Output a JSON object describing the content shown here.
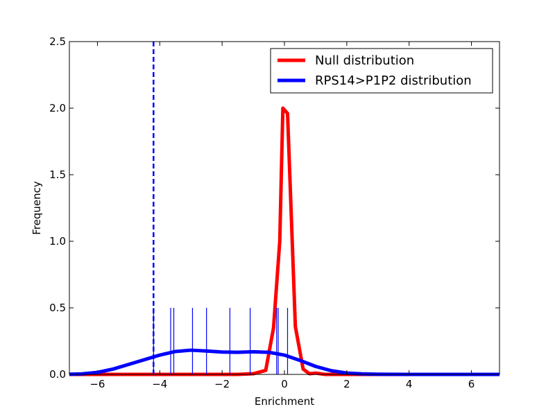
{
  "chart_data": {
    "type": "line",
    "xlabel": "Enrichment",
    "ylabel": "Frequency",
    "xlim": [
      -6.9,
      6.9
    ],
    "ylim": [
      0,
      2.5
    ],
    "x_ticks": [
      -6,
      -4,
      -2,
      0,
      2,
      4,
      6
    ],
    "x_tick_labels": [
      "−6",
      "−4",
      "−2",
      "0",
      "2",
      "4",
      "6"
    ],
    "y_ticks": [
      0,
      0.5,
      1,
      1.5,
      2,
      2.5
    ],
    "y_tick_labels": [
      "0.0",
      "0.5",
      "1.0",
      "1.5",
      "2.0",
      "2.5"
    ],
    "legend_position": "top-right",
    "series": [
      {
        "name": "Null distribution",
        "color": "#ff0000",
        "x": [
          -6.9,
          -6.0,
          -5.0,
          -4.0,
          -3.0,
          -2.0,
          -1.5,
          -1.0,
          -0.6,
          -0.35,
          -0.15,
          -0.05,
          0.1,
          0.35,
          0.6,
          0.8,
          1.0,
          1.3,
          2.0,
          4.0,
          6.9
        ],
        "y": [
          0.0,
          0.0,
          0.0,
          0.0,
          0.0,
          0.0,
          0.0,
          0.005,
          0.03,
          0.35,
          1.0,
          2.0,
          1.96,
          0.36,
          0.04,
          0.005,
          0.01,
          0.0,
          0.0,
          0.0,
          0.0
        ]
      },
      {
        "name": "RPS14>P1P2 distribution",
        "color": "#0000ff",
        "x": [
          -6.9,
          -6.5,
          -6.0,
          -5.5,
          -5.0,
          -4.5,
          -4.0,
          -3.5,
          -3.0,
          -2.5,
          -2.0,
          -1.5,
          -1.0,
          -0.5,
          0.0,
          0.5,
          1.0,
          1.5,
          2.0,
          2.5,
          3.0,
          4.0,
          5.0,
          6.0,
          6.9
        ],
        "y": [
          0.001,
          0.004,
          0.015,
          0.04,
          0.075,
          0.11,
          0.145,
          0.172,
          0.182,
          0.176,
          0.168,
          0.166,
          0.17,
          0.166,
          0.145,
          0.105,
          0.06,
          0.028,
          0.01,
          0.004,
          0.001,
          0.0,
          0.0,
          0.0,
          0.0
        ]
      }
    ],
    "rug": {
      "color": "#0000ff",
      "height": 0.5,
      "x": [
        -4.2,
        -3.65,
        -3.55,
        -2.95,
        -2.5,
        -1.75,
        -1.1,
        -0.25,
        -0.2,
        0.1
      ]
    },
    "vline": {
      "x": -4.2,
      "color": "#0000ff",
      "style": "dashed"
    }
  }
}
